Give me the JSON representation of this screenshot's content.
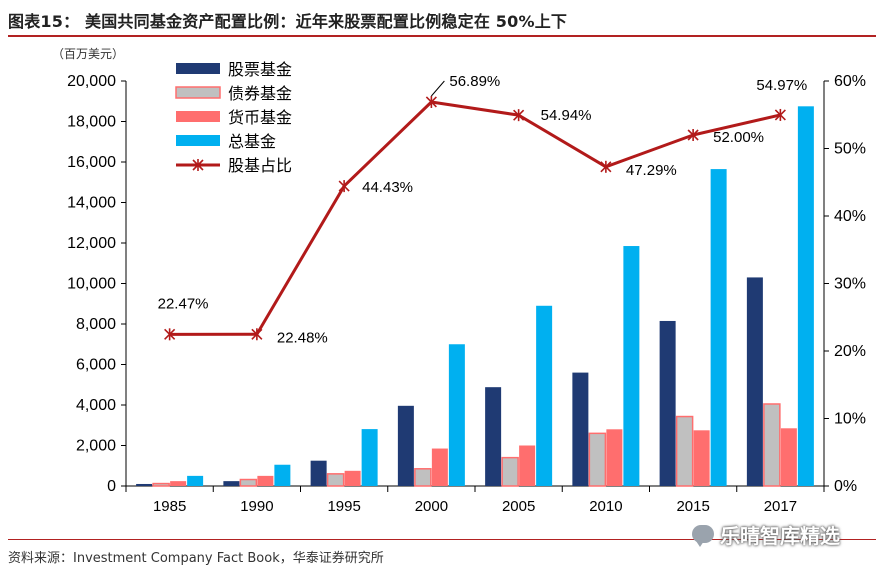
{
  "header": {
    "title": "图表15：  美国共同基金资产配置比例：近年来股票配置比例稳定在 50%上下"
  },
  "footer": {
    "source": "资料来源：Investment Company Fact Book，华泰证券研究所",
    "watermark": "乐晴智库精选",
    "watermark_icon": "chat-bubble-icon"
  },
  "colors": {
    "stock": "#1f3a73",
    "bond": "#c0c0c0",
    "money": "#ff6e6e",
    "total": "#00b0f0",
    "ratio": "#b21a1a",
    "rule": "#b22222"
  },
  "chart_data": {
    "type": "bar+line",
    "title": "美国共同基金资产配置比例：近年来股票配置比例稳定在 50%上下",
    "ylabel": "（百万美元）",
    "categories": [
      "1985",
      "1990",
      "1995",
      "2000",
      "2005",
      "2010",
      "2015",
      "2017"
    ],
    "ylim": [
      0,
      20000
    ],
    "y_ticks": [
      "0",
      "2,000",
      "4,000",
      "6,000",
      "8,000",
      "10,000",
      "12,000",
      "14,000",
      "16,000",
      "18,000",
      "20,000"
    ],
    "y2lim": [
      0,
      60
    ],
    "y2_ticks": [
      "0%",
      "10%",
      "20%",
      "30%",
      "40%",
      "50%",
      "60%"
    ],
    "series": [
      {
        "name": "股票基金",
        "type": "bar",
        "values": [
          100,
          240,
          1250,
          3960,
          4880,
          5600,
          8150,
          10300
        ]
      },
      {
        "name": "债券基金",
        "type": "bar",
        "values": [
          120,
          320,
          600,
          850,
          1400,
          2600,
          3430,
          4050
        ]
      },
      {
        "name": "货币基金",
        "type": "bar",
        "values": [
          240,
          500,
          750,
          1850,
          2000,
          2800,
          2750,
          2850
        ]
      },
      {
        "name": "总基金",
        "type": "bar",
        "values": [
          500,
          1050,
          2810,
          7000,
          8900,
          11850,
          15650,
          18750
        ]
      },
      {
        "name": "股基占比",
        "type": "line",
        "axis": "right",
        "values": [
          22.47,
          22.48,
          44.43,
          56.89,
          54.94,
          47.29,
          52.0,
          54.97
        ],
        "labels": [
          "22.47%",
          "22.48%",
          "44.43%",
          "56.89%",
          "54.94%",
          "47.29%",
          "52.00%",
          "54.97%"
        ]
      }
    ],
    "legend_position": "top-left"
  }
}
